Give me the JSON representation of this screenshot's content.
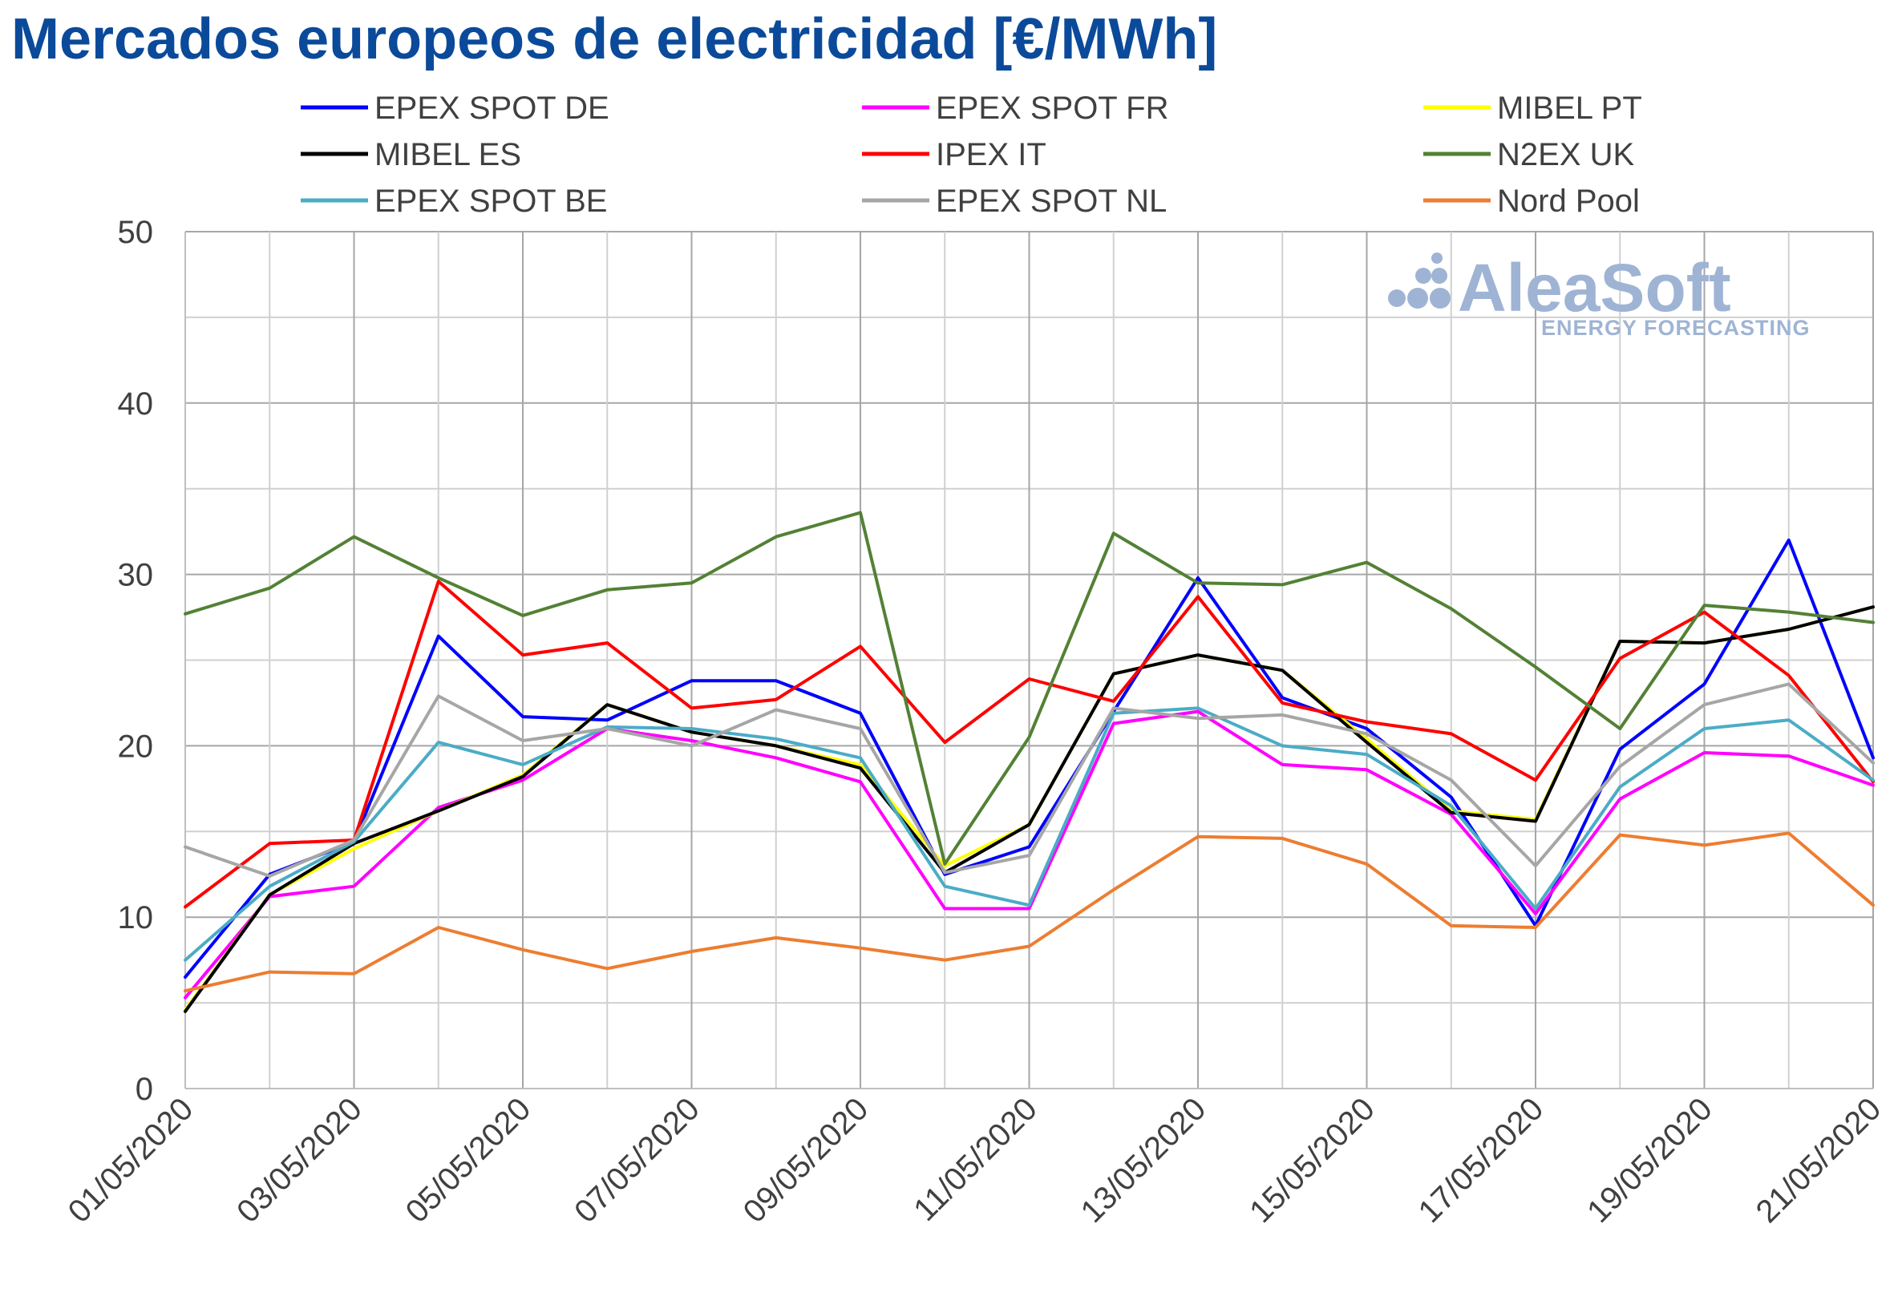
{
  "chart_data": {
    "type": "line",
    "title": "Mercados europeos de electricidad [€/MWh]",
    "xlabel": "",
    "ylabel": "",
    "ylim": [
      0,
      50
    ],
    "yticks": [
      0,
      10,
      20,
      30,
      40,
      50
    ],
    "grid": true,
    "legend_position": "top",
    "x": [
      "01/05/2020",
      "02/05/2020",
      "03/05/2020",
      "04/05/2020",
      "05/05/2020",
      "06/05/2020",
      "07/05/2020",
      "08/05/2020",
      "09/05/2020",
      "10/05/2020",
      "11/05/2020",
      "12/05/2020",
      "13/05/2020",
      "14/05/2020",
      "15/05/2020",
      "16/05/2020",
      "17/05/2020",
      "18/05/2020",
      "19/05/2020",
      "20/05/2020",
      "21/05/2020"
    ],
    "xtick_labels": [
      "01/05/2020",
      "03/05/2020",
      "05/05/2020",
      "07/05/2020",
      "09/05/2020",
      "11/05/2020",
      "13/05/2020",
      "15/05/2020",
      "17/05/2020",
      "19/05/2020",
      "21/05/2020"
    ],
    "series": [
      {
        "name": "EPEX SPOT DE",
        "color": "#0000ff",
        "values": [
          6.5,
          12.5,
          14.4,
          26.4,
          21.7,
          21.5,
          23.8,
          23.8,
          21.9,
          12.5,
          14.1,
          22.0,
          29.8,
          22.8,
          21.0,
          17.0,
          9.5,
          19.8,
          23.6,
          32.0,
          19.3
        ]
      },
      {
        "name": "EPEX SPOT FR",
        "color": "#ff00ff",
        "values": [
          5.3,
          11.2,
          11.8,
          16.4,
          18.0,
          21.0,
          20.3,
          19.3,
          17.9,
          10.5,
          10.5,
          21.3,
          22.0,
          18.9,
          18.6,
          16.0,
          10.2,
          16.9,
          19.6,
          19.4,
          17.7
        ]
      },
      {
        "name": "MIBEL PT",
        "color": "#ffff00",
        "values": [
          4.6,
          11.3,
          14.0,
          16.2,
          18.3,
          22.4,
          20.8,
          20.0,
          18.9,
          13.0,
          15.4,
          24.2,
          25.3,
          24.4,
          20.4,
          16.2,
          15.7,
          26.1,
          26.0,
          26.8,
          28.1
        ]
      },
      {
        "name": "MIBEL ES",
        "color": "#000000",
        "values": [
          4.5,
          11.3,
          14.3,
          16.2,
          18.2,
          22.4,
          20.8,
          20.0,
          18.7,
          12.6,
          15.4,
          24.2,
          25.3,
          24.4,
          20.2,
          16.1,
          15.6,
          26.1,
          26.0,
          26.8,
          28.1
        ]
      },
      {
        "name": "IPEX IT",
        "color": "#ff0000",
        "values": [
          10.6,
          14.3,
          14.5,
          29.6,
          25.3,
          26.0,
          22.2,
          22.7,
          25.8,
          20.2,
          23.9,
          22.6,
          28.7,
          22.5,
          21.4,
          20.7,
          18.0,
          25.1,
          27.8,
          24.1,
          17.9
        ]
      },
      {
        "name": "N2EX UK",
        "color": "#538135",
        "values": [
          27.7,
          29.2,
          32.2,
          29.8,
          27.6,
          29.1,
          29.5,
          32.2,
          33.6,
          13.1,
          20.5,
          32.4,
          29.5,
          29.4,
          30.7,
          28.0,
          24.6,
          21.0,
          28.2,
          27.8,
          27.2
        ]
      },
      {
        "name": "EPEX SPOT BE",
        "color": "#4bacc6",
        "values": [
          7.5,
          11.8,
          14.4,
          20.2,
          18.9,
          21.1,
          21.0,
          20.4,
          19.3,
          11.8,
          10.7,
          21.9,
          22.2,
          20.0,
          19.5,
          16.5,
          10.5,
          17.6,
          21.0,
          21.5,
          18.0
        ]
      },
      {
        "name": "EPEX SPOT NL",
        "color": "#a6a6a6",
        "values": [
          14.1,
          12.4,
          14.5,
          22.9,
          20.3,
          21.0,
          20.0,
          22.1,
          21.0,
          12.6,
          13.6,
          22.2,
          21.6,
          21.8,
          20.7,
          18.0,
          13.0,
          18.8,
          22.4,
          23.6,
          19.0
        ]
      },
      {
        "name": "Nord Pool",
        "color": "#ed7d31",
        "values": [
          5.7,
          6.8,
          6.7,
          9.4,
          8.1,
          7.0,
          8.0,
          8.8,
          8.2,
          7.5,
          8.3,
          11.6,
          14.7,
          14.6,
          13.1,
          9.5,
          9.4,
          14.8,
          14.2,
          14.9,
          10.7
        ]
      }
    ]
  },
  "branding": {
    "logo_text": "AleaSoft",
    "logo_subtext": "ENERGY FORECASTING"
  }
}
